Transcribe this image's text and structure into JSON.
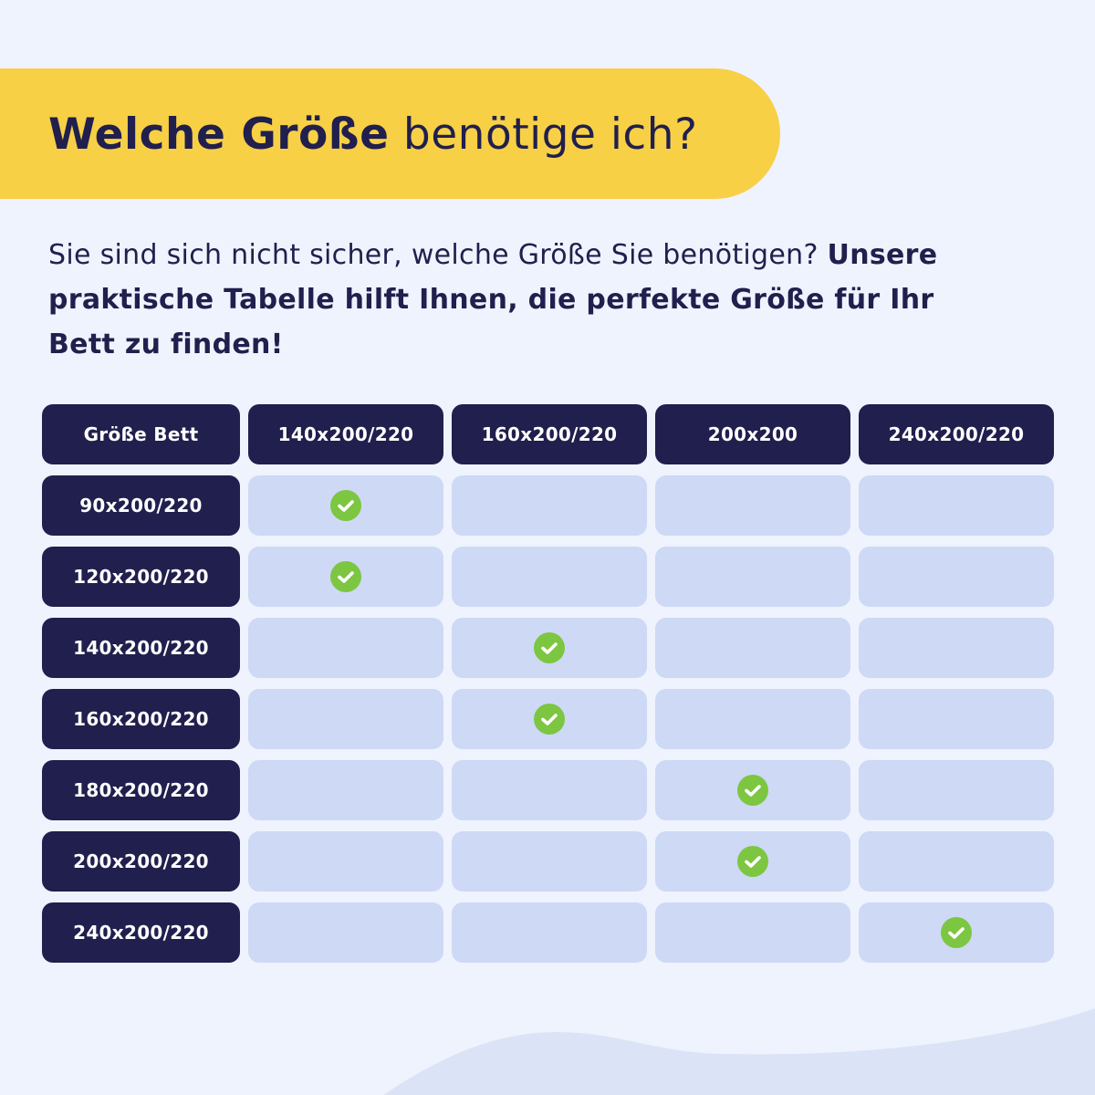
{
  "title": {
    "bold": "Welche Größe",
    "regular": "benötige ich?"
  },
  "intro": {
    "regular": "Sie sind sich nicht sicher, welche Größe Sie benötigen?",
    "bold": "Unsere praktische Tabelle hilft Ihnen, die perfekte Größe für Ihr Bett zu finden!"
  },
  "table": {
    "corner": "Größe Bett",
    "columns": [
      "140x200/220",
      "160x200/220",
      "200x200",
      "240x200/220"
    ],
    "rows": [
      {
        "label": "90x200/220",
        "checks": [
          true,
          false,
          false,
          false
        ]
      },
      {
        "label": "120x200/220",
        "checks": [
          true,
          false,
          false,
          false
        ]
      },
      {
        "label": "140x200/220",
        "checks": [
          false,
          true,
          false,
          false
        ]
      },
      {
        "label": "160x200/220",
        "checks": [
          false,
          true,
          false,
          false
        ]
      },
      {
        "label": "180x200/220",
        "checks": [
          false,
          false,
          true,
          false
        ]
      },
      {
        "label": "200x200/220",
        "checks": [
          false,
          false,
          true,
          false
        ]
      },
      {
        "label": "240x200/220",
        "checks": [
          false,
          false,
          false,
          true
        ]
      }
    ],
    "check_icon": "check-circle-icon"
  },
  "colors": {
    "background": "#eff3fd",
    "banner": "#f7d046",
    "navy": "#211f4d",
    "cell": "#cdd9f5",
    "check": "#7dc641",
    "wave": "#dbe4f6"
  }
}
